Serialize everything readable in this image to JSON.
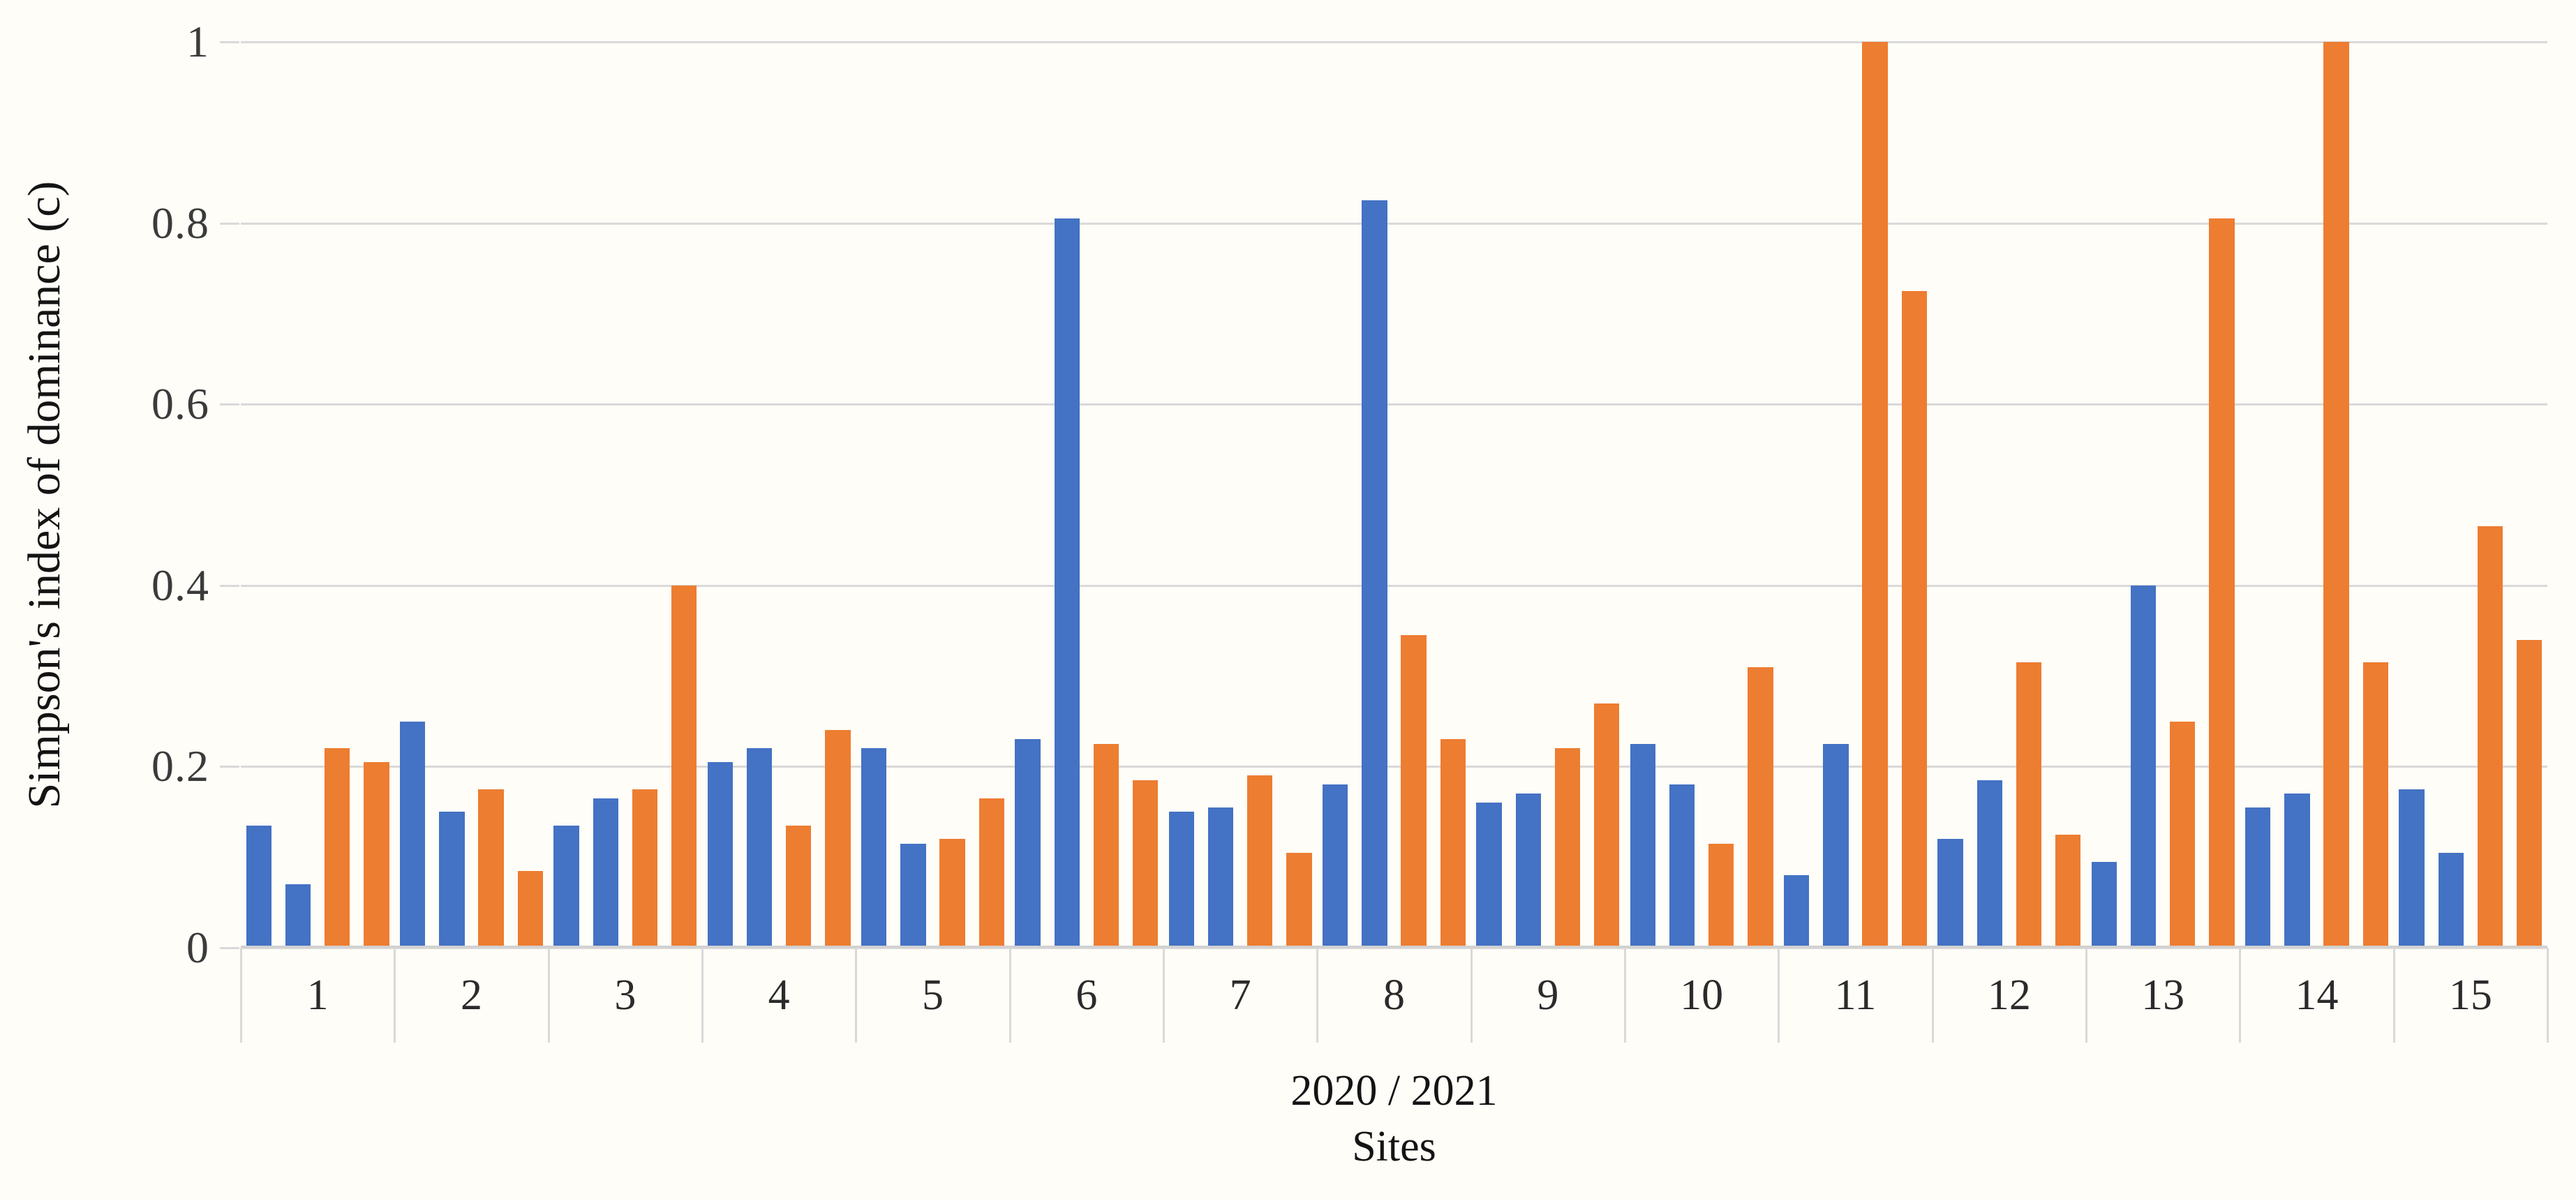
{
  "figure": {
    "background_color": "#fffdf8",
    "gridline_color": "#d9d9d9",
    "axis_line_color": "#d0d0d0",
    "text_color": "#2b2b2b"
  },
  "chart_data": {
    "type": "bar",
    "title": "",
    "ylabel": "Simpson's index of dominance (c)",
    "xlabel_lines": [
      "2020 / 2021",
      "Sites"
    ],
    "ylim": [
      0,
      1
    ],
    "yticks": [
      0,
      0.2,
      0.4,
      0.6,
      0.8,
      1
    ],
    "grid": true,
    "legend": "none",
    "bars_per_category_order": [
      "blue-1",
      "blue-2",
      "orange-1",
      "orange-2"
    ],
    "categories": [
      "1",
      "2",
      "3",
      "4",
      "5",
      "6",
      "7",
      "8",
      "9",
      "10",
      "11",
      "12",
      "13",
      "14",
      "15"
    ],
    "series": [
      {
        "name": "blue-1",
        "color": "#4472C4",
        "values": [
          0.135,
          0.25,
          0.135,
          0.205,
          0.22,
          0.23,
          0.15,
          0.18,
          0.16,
          0.225,
          0.08,
          0.12,
          0.095,
          0.155,
          0.175
        ]
      },
      {
        "name": "blue-2",
        "color": "#4472C4",
        "values": [
          0.07,
          0.15,
          0.165,
          0.22,
          0.115,
          0.805,
          0.155,
          0.825,
          0.17,
          0.18,
          0.225,
          0.185,
          0.4,
          0.17,
          0.105
        ]
      },
      {
        "name": "orange-1",
        "color": "#ED7D31",
        "values": [
          0.22,
          0.175,
          0.175,
          0.135,
          0.12,
          0.225,
          0.19,
          0.345,
          0.22,
          0.115,
          1.0,
          0.315,
          0.25,
          1.0,
          0.465
        ]
      },
      {
        "name": "orange-2",
        "color": "#ED7D31",
        "values": [
          0.205,
          0.085,
          0.4,
          0.24,
          0.165,
          0.185,
          0.105,
          0.23,
          0.27,
          0.31,
          0.725,
          0.125,
          0.805,
          0.315,
          0.34
        ]
      }
    ]
  }
}
